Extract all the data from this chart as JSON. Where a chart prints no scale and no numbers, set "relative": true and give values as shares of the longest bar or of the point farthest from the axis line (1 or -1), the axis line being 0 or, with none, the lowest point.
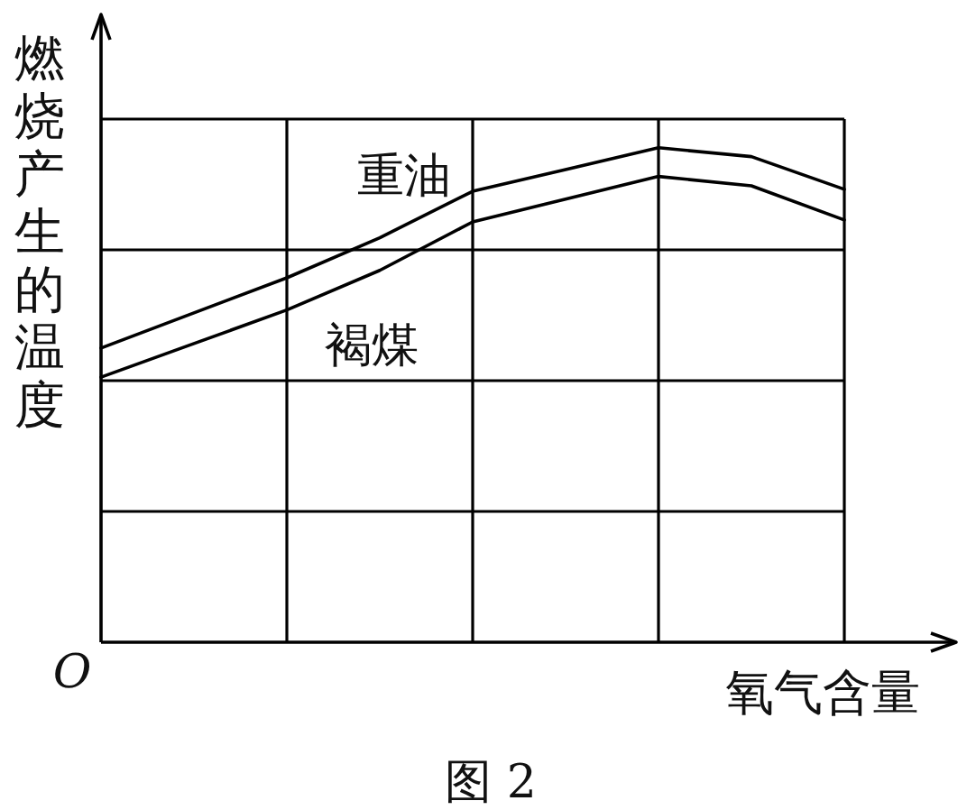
{
  "chart_data": {
    "type": "line",
    "relative": true,
    "ylabel": "燃烧产生的温度",
    "xlabel": "氧气含量",
    "categories": [
      null,
      null,
      null,
      null,
      null,
      null,
      null,
      null,
      null
    ],
    "series": [
      {
        "name": "重油",
        "color": "#000000",
        "values": [
          0.595,
          0.666,
          0.737,
          0.818,
          0.912,
          0.956,
          1,
          0.982,
          0.916
        ]
      },
      {
        "name": "褐煤",
        "color": "#000000",
        "values": [
          0.536,
          0.604,
          0.672,
          0.752,
          0.85,
          0.896,
          0.942,
          0.923,
          0.854
        ]
      }
    ],
    "grid": true,
    "marker": "none",
    "line_style": "solid",
    "annotations": [
      "O",
      "图 2"
    ]
  }
}
